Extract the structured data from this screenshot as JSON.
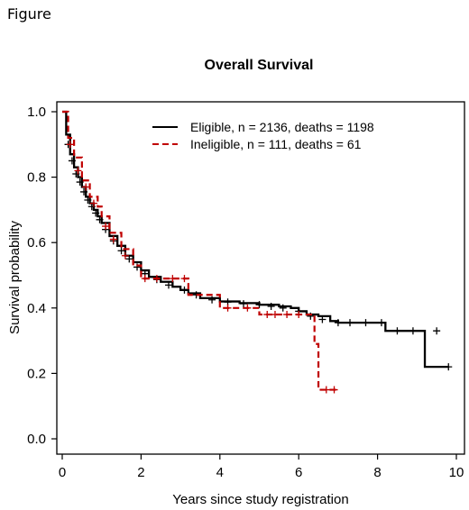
{
  "figure_label": "Figure",
  "colors": {
    "eligible": "#000000",
    "ineligible": "#c00000"
  },
  "chart_data": {
    "type": "line",
    "title": "Overall Survival",
    "xlabel": "Years since study registration",
    "ylabel": "Survival probability",
    "xlim": [
      0,
      10
    ],
    "ylim": [
      0,
      1
    ],
    "xticks": [
      "0",
      "2",
      "4",
      "6",
      "8",
      "10"
    ],
    "yticks": [
      "0.0",
      "0.2",
      "0.4",
      "0.6",
      "0.8",
      "1.0"
    ],
    "grid": false,
    "legend_position": "top-right",
    "series": [
      {
        "name": "Eligible, n = 2136, deaths = 1198",
        "style": "solid",
        "color": "#000000",
        "x": [
          0,
          0.1,
          0.2,
          0.3,
          0.4,
          0.5,
          0.6,
          0.7,
          0.8,
          0.9,
          1.0,
          1.2,
          1.4,
          1.6,
          1.8,
          2.0,
          2.2,
          2.5,
          2.8,
          3.0,
          3.2,
          3.5,
          4.0,
          4.5,
          5.0,
          5.5,
          5.8,
          6.0,
          6.2,
          6.5,
          6.8,
          7.0,
          7.5,
          8.0,
          8.2,
          8.5,
          9.0,
          9.2,
          9.8
        ],
        "y": [
          1.0,
          0.93,
          0.87,
          0.83,
          0.8,
          0.77,
          0.74,
          0.72,
          0.7,
          0.68,
          0.66,
          0.62,
          0.59,
          0.56,
          0.54,
          0.515,
          0.495,
          0.48,
          0.465,
          0.455,
          0.445,
          0.43,
          0.42,
          0.415,
          0.41,
          0.405,
          0.4,
          0.39,
          0.38,
          0.375,
          0.36,
          0.355,
          0.355,
          0.355,
          0.33,
          0.33,
          0.33,
          0.22,
          0.22
        ],
        "censor_x": [
          0.15,
          0.25,
          0.35,
          0.45,
          0.55,
          0.65,
          0.75,
          0.85,
          0.95,
          1.1,
          1.3,
          1.5,
          1.7,
          1.9,
          2.1,
          2.4,
          2.7,
          3.1,
          3.4,
          3.8,
          4.2,
          4.6,
          5.0,
          5.3,
          5.6,
          6.0,
          6.3,
          6.6,
          7.0,
          7.3,
          7.7,
          8.1,
          8.5,
          8.9,
          9.5,
          9.8
        ],
        "censor_y": [
          0.9,
          0.85,
          0.81,
          0.785,
          0.755,
          0.73,
          0.71,
          0.69,
          0.67,
          0.64,
          0.605,
          0.575,
          0.55,
          0.525,
          0.505,
          0.487,
          0.47,
          0.455,
          0.44,
          0.425,
          0.418,
          0.413,
          0.41,
          0.405,
          0.4,
          0.39,
          0.375,
          0.365,
          0.355,
          0.355,
          0.355,
          0.355,
          0.33,
          0.33,
          0.33,
          0.22
        ]
      },
      {
        "name": "Ineligible, n = 111, deaths = 61",
        "style": "dashed",
        "color": "#c00000",
        "x": [
          0,
          0.15,
          0.3,
          0.5,
          0.7,
          0.9,
          1.0,
          1.2,
          1.5,
          1.8,
          2.0,
          2.2,
          2.6,
          3.0,
          3.2,
          3.5,
          3.8,
          4.0,
          4.5,
          5.0,
          5.5,
          6.0,
          6.4,
          6.5,
          6.6,
          7.0
        ],
        "y": [
          1.0,
          0.92,
          0.86,
          0.79,
          0.74,
          0.71,
          0.68,
          0.63,
          0.58,
          0.53,
          0.49,
          0.49,
          0.49,
          0.49,
          0.44,
          0.44,
          0.44,
          0.4,
          0.4,
          0.38,
          0.38,
          0.38,
          0.29,
          0.15,
          0.15,
          0.15
        ],
        "censor_x": [
          0.2,
          0.4,
          0.6,
          0.8,
          1.1,
          1.3,
          1.6,
          2.1,
          2.4,
          2.8,
          3.1,
          4.2,
          4.7,
          5.2,
          5.4,
          5.7,
          6.0,
          6.7,
          6.9
        ],
        "censor_y": [
          0.9,
          0.82,
          0.77,
          0.72,
          0.65,
          0.61,
          0.56,
          0.49,
          0.49,
          0.49,
          0.49,
          0.4,
          0.4,
          0.38,
          0.38,
          0.38,
          0.38,
          0.15,
          0.15
        ]
      }
    ]
  }
}
